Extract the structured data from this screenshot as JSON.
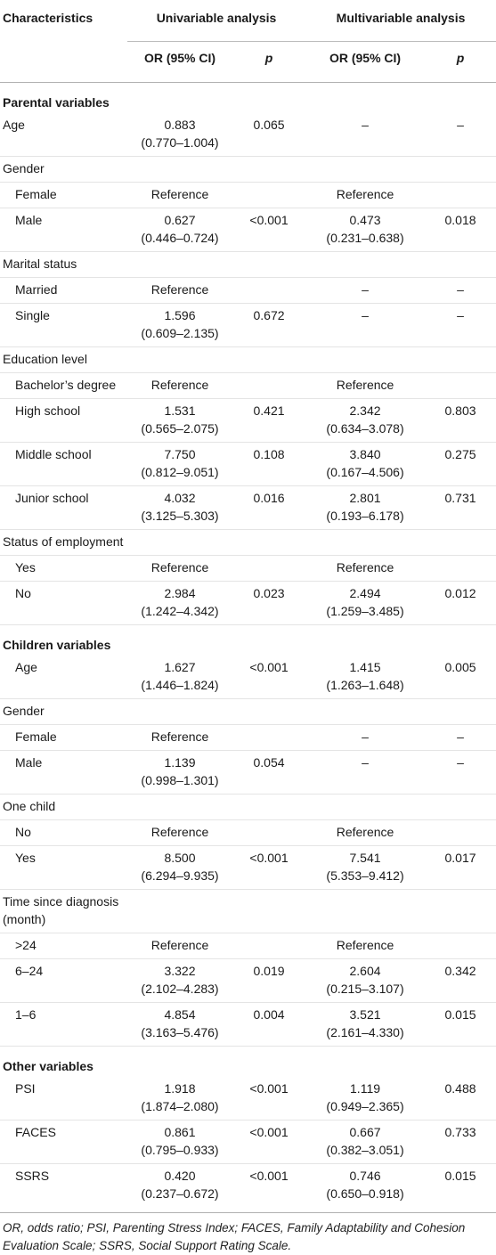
{
  "header": {
    "characteristics": "Characteristics",
    "univariable": "Univariable analysis",
    "multivariable": "Multivariable analysis",
    "or_ci": "OR (95% CI)",
    "p": "p"
  },
  "rows": [
    {
      "type": "section",
      "name": "Parental variables"
    },
    {
      "type": "data",
      "name": "Age",
      "indent": false,
      "u_or": "0.883",
      "u_ci": "(0.770–1.004)",
      "u_p": "0.065",
      "m_or": "–",
      "m_ci": "",
      "m_p": "–"
    },
    {
      "type": "data",
      "name": "Gender",
      "indent": false,
      "u_or": "",
      "u_ci": "",
      "u_p": "",
      "m_or": "",
      "m_ci": "",
      "m_p": ""
    },
    {
      "type": "data",
      "name": "Female",
      "indent": true,
      "u_or": "Reference",
      "u_ci": "",
      "u_p": "",
      "m_or": "Reference",
      "m_ci": "",
      "m_p": ""
    },
    {
      "type": "data",
      "name": "Male",
      "indent": true,
      "u_or": "0.627",
      "u_ci": "(0.446–0.724)",
      "u_p": "<0.001",
      "m_or": "0.473",
      "m_ci": "(0.231–0.638)",
      "m_p": "0.018"
    },
    {
      "type": "data",
      "name": "Marital status",
      "indent": false,
      "u_or": "",
      "u_ci": "",
      "u_p": "",
      "m_or": "",
      "m_ci": "",
      "m_p": ""
    },
    {
      "type": "data",
      "name": "Married",
      "indent": true,
      "u_or": "Reference",
      "u_ci": "",
      "u_p": "",
      "m_or": "–",
      "m_ci": "",
      "m_p": "–"
    },
    {
      "type": "data",
      "name": "Single",
      "indent": true,
      "u_or": "1.596",
      "u_ci": "(0.609–2.135)",
      "u_p": "0.672",
      "m_or": "–",
      "m_ci": "",
      "m_p": "–"
    },
    {
      "type": "data",
      "name": "Education level",
      "indent": false,
      "u_or": "",
      "u_ci": "",
      "u_p": "",
      "m_or": "",
      "m_ci": "",
      "m_p": ""
    },
    {
      "type": "data",
      "name": "Bachelor’s degree",
      "indent": true,
      "u_or": "Reference",
      "u_ci": "",
      "u_p": "",
      "m_or": "Reference",
      "m_ci": "",
      "m_p": ""
    },
    {
      "type": "data",
      "name": "High school",
      "indent": true,
      "u_or": "1.531",
      "u_ci": "(0.565–2.075)",
      "u_p": "0.421",
      "m_or": "2.342",
      "m_ci": "(0.634–3.078)",
      "m_p": "0.803"
    },
    {
      "type": "data",
      "name": "Middle school",
      "indent": true,
      "u_or": "7.750",
      "u_ci": "(0.812–9.051)",
      "u_p": "0.108",
      "m_or": "3.840",
      "m_ci": "(0.167–4.506)",
      "m_p": "0.275"
    },
    {
      "type": "data",
      "name": "Junior school",
      "indent": true,
      "u_or": "4.032",
      "u_ci": "(3.125–5.303)",
      "u_p": "0.016",
      "m_or": "2.801",
      "m_ci": "(0.193–6.178)",
      "m_p": "0.731"
    },
    {
      "type": "data",
      "name": "Status of employment",
      "indent": false,
      "u_or": "",
      "u_ci": "",
      "u_p": "",
      "m_or": "",
      "m_ci": "",
      "m_p": ""
    },
    {
      "type": "data",
      "name": "Yes",
      "indent": true,
      "u_or": "Reference",
      "u_ci": "",
      "u_p": "",
      "m_or": "Reference",
      "m_ci": "",
      "m_p": ""
    },
    {
      "type": "data",
      "name": "No",
      "indent": true,
      "u_or": "2.984",
      "u_ci": "(1.242–4.342)",
      "u_p": "0.023",
      "m_or": "2.494",
      "m_ci": "(1.259–3.485)",
      "m_p": "0.012"
    },
    {
      "type": "section",
      "name": "Children variables"
    },
    {
      "type": "data",
      "name": "Age",
      "indent": true,
      "u_or": "1.627",
      "u_ci": "(1.446–1.824)",
      "u_p": "<0.001",
      "m_or": "1.415",
      "m_ci": "(1.263–1.648)",
      "m_p": "0.005"
    },
    {
      "type": "data",
      "name": "Gender",
      "indent": false,
      "u_or": "",
      "u_ci": "",
      "u_p": "",
      "m_or": "",
      "m_ci": "",
      "m_p": ""
    },
    {
      "type": "data",
      "name": "Female",
      "indent": true,
      "u_or": "Reference",
      "u_ci": "",
      "u_p": "",
      "m_or": "–",
      "m_ci": "",
      "m_p": "–"
    },
    {
      "type": "data",
      "name": "Male",
      "indent": true,
      "u_or": "1.139",
      "u_ci": "(0.998–1.301)",
      "u_p": "0.054",
      "m_or": "–",
      "m_ci": "",
      "m_p": "–"
    },
    {
      "type": "data",
      "name": "One child",
      "indent": false,
      "u_or": "",
      "u_ci": "",
      "u_p": "",
      "m_or": "",
      "m_ci": "",
      "m_p": ""
    },
    {
      "type": "data",
      "name": "No",
      "indent": true,
      "u_or": "Reference",
      "u_ci": "",
      "u_p": "",
      "m_or": "Reference",
      "m_ci": "",
      "m_p": ""
    },
    {
      "type": "data",
      "name": "Yes",
      "indent": true,
      "u_or": "8.500",
      "u_ci": "(6.294–9.935)",
      "u_p": "<0.001",
      "m_or": "7.541",
      "m_ci": "(5.353–9.412)",
      "m_p": "0.017"
    },
    {
      "type": "data",
      "name": "Time since diagnosis (month)",
      "indent": false,
      "u_or": "",
      "u_ci": "",
      "u_p": "",
      "m_or": "",
      "m_ci": "",
      "m_p": ""
    },
    {
      "type": "data",
      "name": ">24",
      "indent": true,
      "u_or": "Reference",
      "u_ci": "",
      "u_p": "",
      "m_or": "Reference",
      "m_ci": "",
      "m_p": ""
    },
    {
      "type": "data",
      "name": "6–24",
      "indent": true,
      "u_or": "3.322",
      "u_ci": "(2.102–4.283)",
      "u_p": "0.019",
      "m_or": "2.604",
      "m_ci": "(0.215–3.107)",
      "m_p": "0.342"
    },
    {
      "type": "data",
      "name": "1–6",
      "indent": true,
      "u_or": "4.854",
      "u_ci": "(3.163–5.476)",
      "u_p": "0.004",
      "m_or": "3.521",
      "m_ci": "(2.161–4.330)",
      "m_p": "0.015"
    },
    {
      "type": "section",
      "name": "Other variables"
    },
    {
      "type": "data",
      "name": "PSI",
      "indent": true,
      "u_or": "1.918",
      "u_ci": "(1.874–2.080)",
      "u_p": "<0.001",
      "m_or": "1.119",
      "m_ci": "(0.949–2.365)",
      "m_p": "0.488"
    },
    {
      "type": "data",
      "name": "FACES",
      "indent": true,
      "u_or": "0.861",
      "u_ci": "(0.795–0.933)",
      "u_p": "<0.001",
      "m_or": "0.667",
      "m_ci": "(0.382–3.051)",
      "m_p": "0.733"
    },
    {
      "type": "data",
      "name": "SSRS",
      "indent": true,
      "u_or": "0.420",
      "u_ci": "(0.237–0.672)",
      "u_p": "<0.001",
      "m_or": "0.746",
      "m_ci": "(0.650–0.918)",
      "m_p": "0.015"
    }
  ],
  "footnote": "OR, odds ratio; PSI, Parenting Stress Index; FACES, Family Adaptability and Cohesion Evaluation Scale; SSRS, Social Support Rating Scale."
}
